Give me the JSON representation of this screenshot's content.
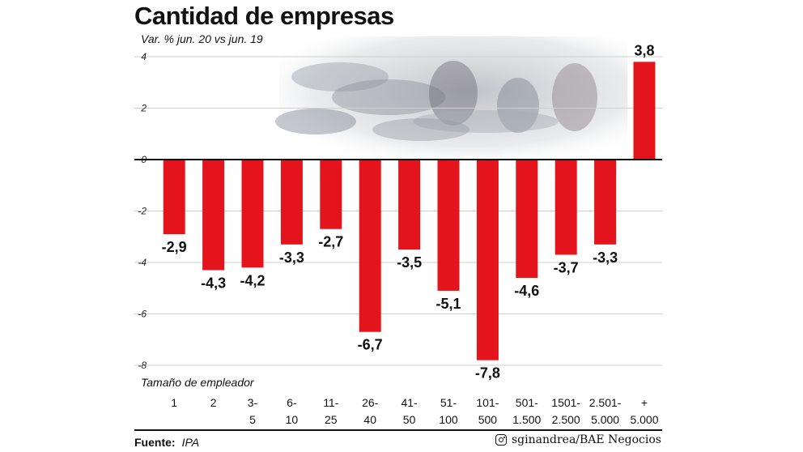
{
  "title": "Cantidad de empresas",
  "subtitle": "Var. % jun. 20 vs jun. 19",
  "footer": {
    "source_label": "Fuente:",
    "source_value": "IPA",
    "credit": "sginandrea/BAE Negocios",
    "credit_icon": "instagram-icon"
  },
  "chart_data": {
    "type": "bar",
    "title": "Cantidad de empresas",
    "subtitle": "Var. % jun. 20 vs jun. 19",
    "xlabel": "Tamaño de empleador",
    "ylabel": "",
    "ylim": [
      -8,
      4
    ],
    "yticks": [
      "4",
      "2",
      "0",
      "-2",
      "-4",
      "-6",
      "-8"
    ],
    "grid": true,
    "categories": [
      [
        "1"
      ],
      [
        "2"
      ],
      [
        "3-",
        "5"
      ],
      [
        "6-",
        "10"
      ],
      [
        "11-",
        "25"
      ],
      [
        "26-",
        "40"
      ],
      [
        "41-",
        "50"
      ],
      [
        "51-",
        "100"
      ],
      [
        "101-",
        "500"
      ],
      [
        "501-",
        "1.500"
      ],
      [
        "1501-",
        "2.500"
      ],
      [
        "2.501-",
        "5.000"
      ],
      [
        "+",
        "5.000"
      ]
    ],
    "values": [
      -2.9,
      -4.3,
      -4.2,
      -3.3,
      -2.7,
      -6.7,
      -3.5,
      -5.1,
      -7.8,
      -4.6,
      -3.7,
      -3.3,
      3.8
    ],
    "value_labels": [
      "-2,9",
      "-4,3",
      "-4,2",
      "-3,3",
      "-2,7",
      "-6,7",
      "-3,5",
      "-5,1",
      "-7,8",
      "-4,6",
      "-3,7",
      "-3,3",
      "3,8"
    ],
    "bar_color": "#e3141c"
  }
}
